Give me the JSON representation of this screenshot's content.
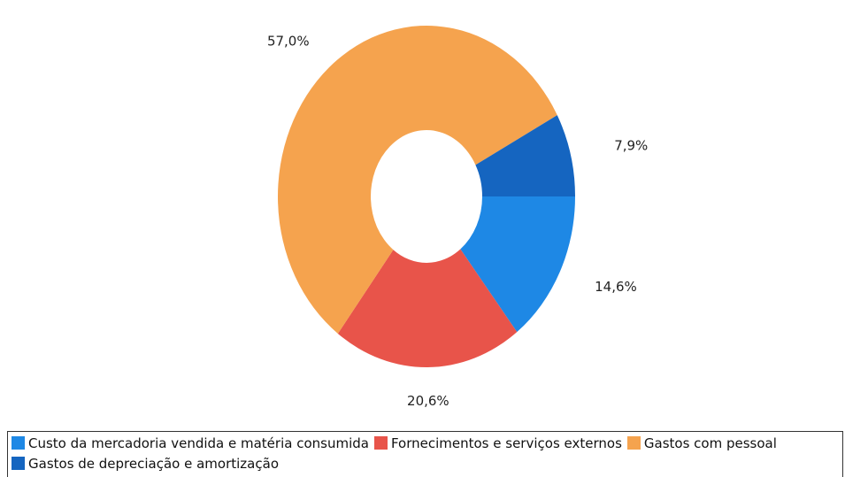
{
  "chart_data": {
    "type": "donut",
    "categories": [
      "Custo da mercadoria vendida e matéria consumida",
      "Fornecimentos e serviços externos",
      "Gastos com pessoal",
      "Gastos de depreciação e amortização"
    ],
    "values": [
      14.6,
      20.6,
      57.0,
      7.9
    ],
    "value_labels": [
      "14,6%",
      "20,6%",
      "57,0%",
      "7,9%"
    ],
    "colors": [
      "#1e88e5",
      "#e8544a",
      "#f5a34e",
      "#1565c0"
    ],
    "legend": "bottom"
  }
}
